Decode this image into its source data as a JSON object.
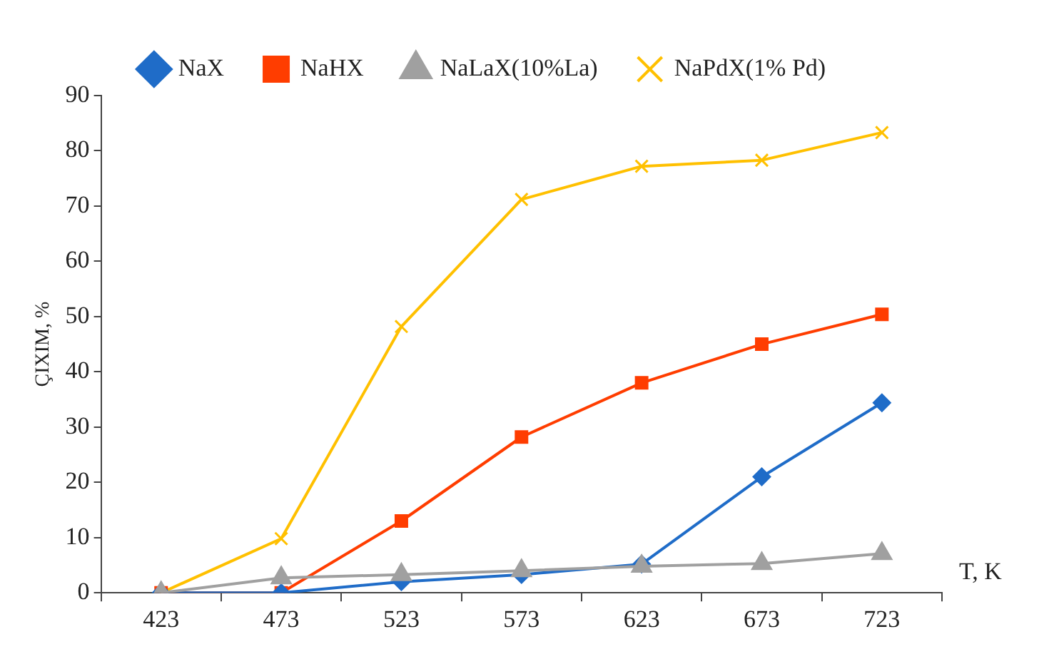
{
  "chart_data": {
    "type": "line",
    "xlabel": "T, K",
    "ylabel": "ÇIXIM, %",
    "categories": [
      "423",
      "473",
      "523",
      "573",
      "623",
      "673",
      "723"
    ],
    "ylim": [
      0,
      90
    ],
    "yticks": [
      0,
      10,
      20,
      30,
      40,
      50,
      60,
      70,
      80,
      90
    ],
    "grid": false,
    "legend": "top",
    "series": [
      {
        "name": "NaX",
        "color": "#1f6cc8",
        "marker": "diamond",
        "values": [
          0,
          0,
          2,
          3.3,
          5.2,
          21,
          34.4
        ]
      },
      {
        "name": "NaHX",
        "color": "#ff3d00",
        "marker": "square",
        "values": [
          0,
          0,
          13,
          28.2,
          38,
          45,
          50.4
        ]
      },
      {
        "name": "NaLaX(10%La)",
        "color": "#a0a0a0",
        "marker": "triangle",
        "values": [
          0,
          2.7,
          3.3,
          4,
          4.8,
          5.3,
          7.1
        ]
      },
      {
        "name": "NaPdX(1% Pd)",
        "color": "#ffc000",
        "marker": "cross",
        "values": [
          0,
          9.8,
          48.2,
          71.2,
          77.2,
          78.3,
          83.3
        ]
      }
    ]
  }
}
